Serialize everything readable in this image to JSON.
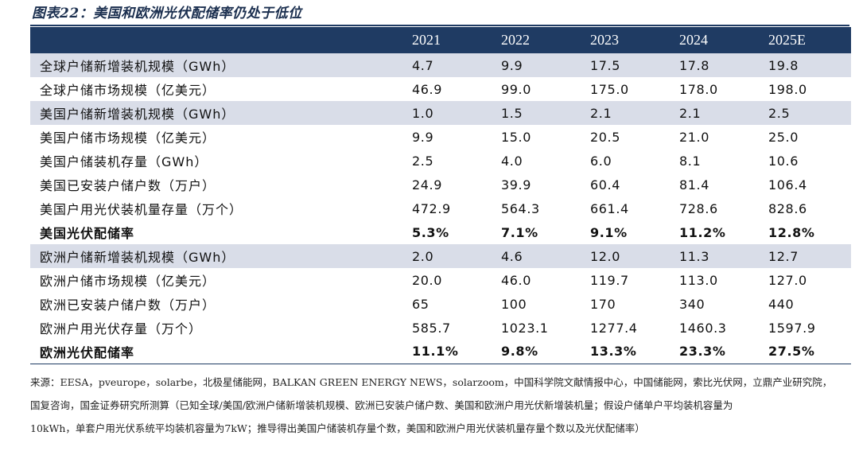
{
  "title": "图表22：美国和欧洲光伏配储率仍处于低位",
  "table": {
    "headers": [
      "",
      "2021",
      "2022",
      "2023",
      "2024",
      "2025E"
    ],
    "rows": [
      {
        "label": "全球户储新增装机规模（GWh）",
        "values": [
          "4.7",
          "9.9",
          "17.5",
          "17.8",
          "19.8"
        ],
        "shade": true,
        "bold": false
      },
      {
        "label": "全球户储市场规模（亿美元）",
        "values": [
          "46.9",
          "99.0",
          "175.0",
          "178.0",
          "198.0"
        ],
        "shade": false,
        "bold": false
      },
      {
        "label": "美国户储新增装机规模（GWh）",
        "values": [
          "1.0",
          "1.5",
          "2.1",
          "2.1",
          "2.5"
        ],
        "shade": true,
        "bold": false
      },
      {
        "label": "美国户储市场规模（亿美元）",
        "values": [
          "9.9",
          "15.0",
          "20.5",
          "21.0",
          "25.0"
        ],
        "shade": false,
        "bold": false
      },
      {
        "label": "美国户储装机存量（GWh）",
        "values": [
          "2.5",
          "4.0",
          "6.0",
          "8.1",
          "10.6"
        ],
        "shade": false,
        "bold": false
      },
      {
        "label": "美国已安装户储户数（万户）",
        "values": [
          "24.9",
          "39.9",
          "60.4",
          "81.4",
          "106.4"
        ],
        "shade": false,
        "bold": false
      },
      {
        "label": "美国户用光伏装机量存量（万个）",
        "values": [
          "472.9",
          "564.3",
          "661.4",
          "728.6",
          "828.6"
        ],
        "shade": false,
        "bold": false
      },
      {
        "label": "美国光伏配储率",
        "values": [
          "5.3%",
          "7.1%",
          "9.1%",
          "11.2%",
          "12.8%"
        ],
        "shade": false,
        "bold": true
      },
      {
        "label": "欧洲户储新增装机规模（GWh）",
        "values": [
          "2.0",
          "4.6",
          "12.0",
          "11.3",
          "12.7"
        ],
        "shade": true,
        "bold": false
      },
      {
        "label": "欧洲户储市场规模（亿美元）",
        "values": [
          "20.0",
          "46.0",
          "119.7",
          "113.0",
          "127.0"
        ],
        "shade": false,
        "bold": false
      },
      {
        "label": "欧洲已安装户储户数（万户）",
        "values": [
          "65",
          "100",
          "170",
          "340",
          "440"
        ],
        "shade": false,
        "bold": false
      },
      {
        "label": "欧洲户用光伏存量（万个）",
        "values": [
          "585.7",
          "1023.1",
          "1277.4",
          "1460.3",
          "1597.9"
        ],
        "shade": false,
        "bold": false
      },
      {
        "label": "欧洲光伏配储率",
        "values": [
          "11.1%",
          "9.8%",
          "13.3%",
          "23.3%",
          "27.5%"
        ],
        "shade": false,
        "bold": true
      }
    ]
  },
  "source": {
    "line1": "来源：EESA，pveurope，solarbe，北极星储能网，BALKAN GREEN ENERGY NEWS，solarzoom，中国科学院文献情报中心，中国储能网，索比光伏网，立鼎产业研究院，",
    "line2": "国复咨询，国金证券研究所测算（已知全球/美国/欧洲户储新增装机规模、欧洲已安装户储户数、美国和欧洲户用光伏新增装机量；假设户储单户平均装机容量为",
    "line3": "10kWh，单套户用光伏系统平均装机容量为7kW；推导得出美国户储装机存量个数，美国和欧洲户用光伏装机量存量个数以及光伏配储率）"
  }
}
